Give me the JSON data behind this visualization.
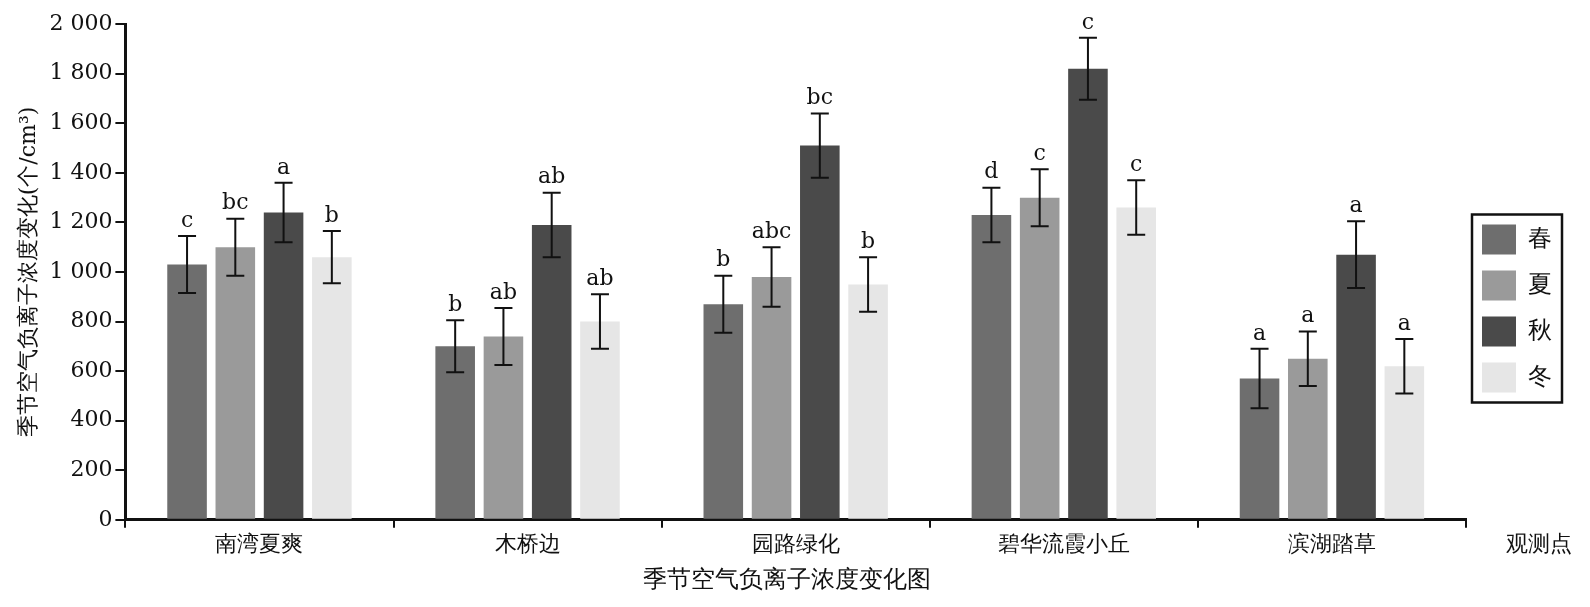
{
  "chart_data": {
    "type": "bar",
    "title": "季节空气负离子浓度变化图",
    "xlabel": "观测点",
    "ylabel": "季节空气负离子浓度变化(个/cm³)",
    "categories": [
      "南湾夏爽",
      "木桥边",
      "园路绿化",
      "碧华流霞小丘",
      "滨湖踏草"
    ],
    "series": [
      {
        "name": "春",
        "color": "#6e6e6e",
        "values": [
          1030,
          700,
          870,
          1230,
          570
        ],
        "errors": [
          115,
          105,
          115,
          110,
          120
        ],
        "value_labels": [
          "c",
          "b",
          "b",
          "d",
          "a"
        ]
      },
      {
        "name": "夏",
        "color": "#9a9a9a",
        "values": [
          1100,
          740,
          980,
          1300,
          650
        ],
        "errors": [
          115,
          115,
          120,
          115,
          110
        ],
        "value_labels": [
          "bc",
          "ab",
          "abc",
          "c",
          "a"
        ]
      },
      {
        "name": "秋",
        "color": "#4a4a4a",
        "values": [
          1240,
          1190,
          1510,
          1820,
          1070
        ],
        "errors": [
          120,
          130,
          130,
          125,
          135
        ],
        "value_labels": [
          "a",
          "ab",
          "bc",
          "c",
          "a"
        ]
      },
      {
        "name": "冬",
        "color": "#e6e6e6",
        "values": [
          1060,
          800,
          950,
          1260,
          620
        ],
        "errors": [
          105,
          110,
          110,
          110,
          110
        ],
        "value_labels": [
          "b",
          "ab",
          "b",
          "c",
          "a"
        ]
      }
    ],
    "ylim": [
      0,
      2000
    ],
    "yticks": [
      0,
      200,
      400,
      600,
      800,
      {
        "value": 1000,
        "label": "1 000"
      },
      {
        "value": 1200,
        "label": "1 200"
      },
      {
        "value": 1400,
        "label": "1 400"
      },
      {
        "value": 1600,
        "label": "1 600"
      },
      {
        "value": 1800,
        "label": "1 800"
      },
      {
        "value": 2000,
        "label": "2 000"
      }
    ],
    "grid": false,
    "legend": "right"
  }
}
